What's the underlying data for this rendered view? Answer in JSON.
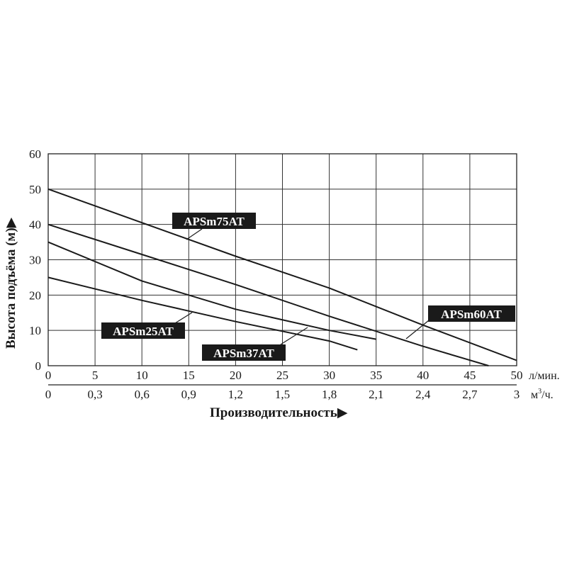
{
  "chart_data": {
    "type": "line",
    "title": "",
    "ylabel": "Высота подъёма (м)",
    "ylabel_arrow": "▶",
    "xlabel": "Производительность",
    "xlabel_arrow": "▶",
    "x_unit": "л/мин.",
    "x2_unit_base": "м",
    "x2_unit_sup": "3",
    "x2_unit_tail": "/ч.",
    "xlim": [
      0,
      50
    ],
    "ylim": [
      0,
      60
    ],
    "grid": true,
    "x_ticks": [
      0,
      5,
      10,
      15,
      20,
      25,
      30,
      35,
      40,
      45,
      50
    ],
    "x_tick_labels": [
      "0",
      "5",
      "10",
      "15",
      "20",
      "25",
      "30",
      "35",
      "40",
      "45",
      "50"
    ],
    "x2_tick_labels": [
      "0",
      "0,3",
      "0,6",
      "0,9",
      "1,2",
      "1,5",
      "1,8",
      "2,1",
      "2,4",
      "2,7",
      "3"
    ],
    "y_ticks": [
      0,
      10,
      20,
      30,
      40,
      50,
      60
    ],
    "y_tick_labels": [
      "0",
      "10",
      "20",
      "30",
      "40",
      "50",
      "60"
    ],
    "series": [
      {
        "name": "APSm75AT",
        "x": [
          0,
          10,
          20,
          30,
          40,
          50
        ],
        "y": [
          50,
          40.5,
          31,
          22,
          11.5,
          1.5
        ]
      },
      {
        "name": "APSm60AT",
        "x": [
          0,
          10,
          20,
          30,
          40,
          47
        ],
        "y": [
          40,
          31.5,
          23,
          14,
          5.5,
          0
        ]
      },
      {
        "name": "APSm37AT",
        "x": [
          0,
          10,
          20,
          30,
          35
        ],
        "y": [
          35,
          24,
          16,
          10,
          7.5
        ]
      },
      {
        "name": "APSm25AT",
        "x": [
          0,
          10,
          20,
          30,
          33
        ],
        "y": [
          25,
          18.5,
          12.5,
          7,
          4.5
        ]
      }
    ]
  }
}
